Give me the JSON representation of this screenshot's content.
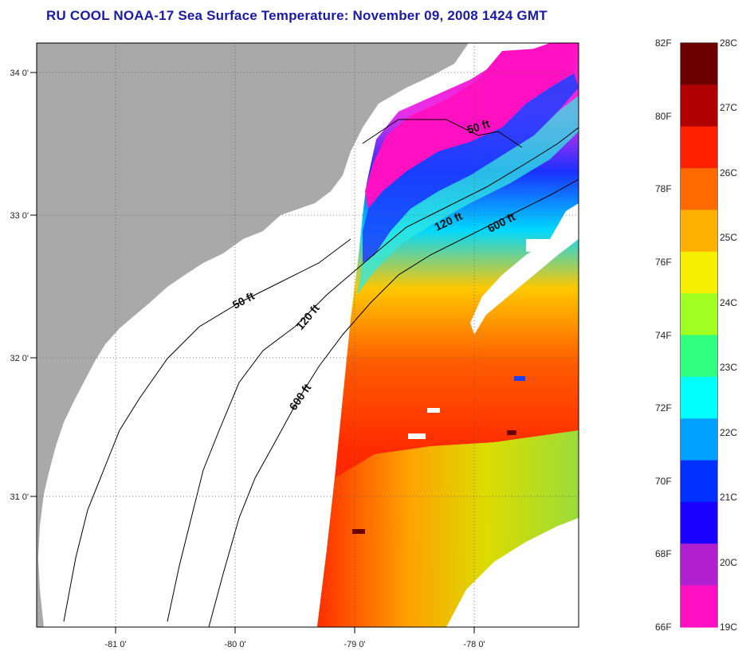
{
  "title": "RU COOL  NOAA-17  Sea Surface Temperature:  November 09, 2008 1424 GMT",
  "map": {
    "lon_ticks": [
      "-81 0'",
      "-80 0'",
      "-79 0'",
      "-78 0'"
    ],
    "lat_ticks": [
      "34 0'",
      "33 0'",
      "32 0'",
      "31 0'"
    ],
    "contours": [
      {
        "label": "50 ft",
        "feet": 50
      },
      {
        "label": "120 ft",
        "feet": 120
      },
      {
        "label": "600 ft",
        "feet": 600
      }
    ],
    "colors": {
      "land": "#a9a9a9",
      "no_data": "#ffffff",
      "coast_line": "#000000"
    }
  },
  "colorbar": {
    "fahrenheit_labels": [
      "82F",
      "80F",
      "78F",
      "76F",
      "74F",
      "72F",
      "70F",
      "68F",
      "66F"
    ],
    "celsius_labels": [
      "28C",
      "27C",
      "26C",
      "25C",
      "24C",
      "23C",
      "22C",
      "21C",
      "20C",
      "19C"
    ],
    "colors_top_to_bottom": [
      "#6b0000",
      "#b00000",
      "#ff2000",
      "#ff6a00",
      "#ffb000",
      "#f6f000",
      "#a0ff20",
      "#30ff80",
      "#00ffff",
      "#00a0ff",
      "#0030ff",
      "#1a00ff",
      "#b020d0",
      "#ff10c0"
    ]
  }
}
